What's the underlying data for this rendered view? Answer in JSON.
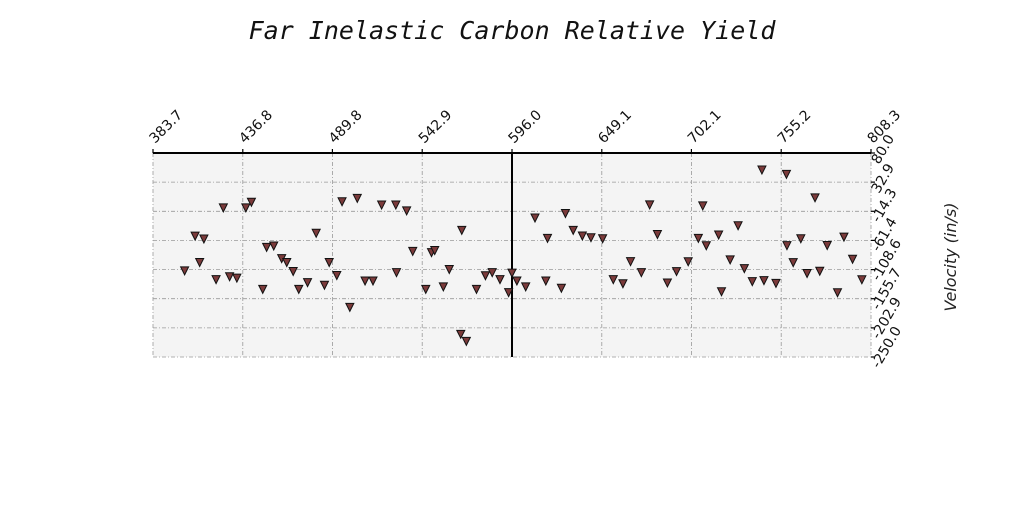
{
  "chart_data": {
    "type": "scatter",
    "title": "Far Inelastic Carbon Relative Yield",
    "xlabel": "",
    "ylabel": "Velocity (in/s)",
    "x_axis_position": "top",
    "y_axis_position": "right",
    "xlim": [
      383.7,
      808.3
    ],
    "ylim": [
      -250.0,
      80.0
    ],
    "x_ticks": [
      "383.7",
      "436.8",
      "489.8",
      "542.9",
      "596.0",
      "649.1",
      "702.1",
      "755.2",
      "808.3"
    ],
    "y_ticks": [
      "80.0",
      "32.9",
      "-14.3",
      "-61.4",
      "-108.6",
      "-155.7",
      "-202.9",
      "-250.0"
    ],
    "grid": true,
    "vertical_reference_line": 596.0,
    "marker": "triangle-down",
    "colors": {
      "marker_fill": "#7b3a3a",
      "marker_edge": "#111111",
      "background": "#f4f4f4",
      "grid": "#999999",
      "reference_line": "#000000"
    },
    "points": [
      [
        402.4,
        -110.7
      ],
      [
        408.6,
        -54.5
      ],
      [
        411.3,
        -97.1
      ],
      [
        413.8,
        -59.1
      ],
      [
        421.0,
        -124.8
      ],
      [
        425.3,
        -8.8
      ],
      [
        429.0,
        -120.2
      ],
      [
        433.3,
        -122.5
      ],
      [
        438.6,
        -8.8
      ],
      [
        441.9,
        0.3
      ],
      [
        448.6,
        -140.6
      ],
      [
        450.9,
        -72.7
      ],
      [
        455.1,
        -70.4
      ],
      [
        459.8,
        -90.8
      ],
      [
        462.8,
        -97.1
      ],
      [
        466.6,
        -111.7
      ],
      [
        469.9,
        -140.6
      ],
      [
        475.1,
        -129.7
      ],
      [
        480.2,
        -49.9
      ],
      [
        485.1,
        -133.9
      ],
      [
        487.9,
        -97.1
      ],
      [
        492.4,
        -118.2
      ],
      [
        495.5,
        1.1
      ],
      [
        500.1,
        -169.7
      ],
      [
        504.5,
        6.5
      ],
      [
        509.1,
        -127.0
      ],
      [
        513.8,
        -127.0
      ],
      [
        518.9,
        -4.2
      ],
      [
        527.3,
        -4.2
      ],
      [
        527.7,
        -113.6
      ],
      [
        533.7,
        -13.6
      ],
      [
        537.3,
        -79.2
      ],
      [
        545.0,
        -140.6
      ],
      [
        548.4,
        -81.2
      ],
      [
        550.3,
        -77.8
      ],
      [
        555.4,
        -136.5
      ],
      [
        558.9,
        -108.4
      ],
      [
        566.3,
        -45.2
      ],
      [
        565.7,
        -213.3
      ],
      [
        569.0,
        -224.7
      ],
      [
        575.0,
        -140.6
      ],
      [
        580.3,
        -118.6
      ],
      [
        584.3,
        -113.6
      ],
      [
        588.9,
        -124.8
      ],
      [
        594.0,
        -145.8
      ],
      [
        596.0,
        -114.3
      ],
      [
        598.9,
        -127.0
      ],
      [
        604.1,
        -136.5
      ],
      [
        609.6,
        -25.2
      ],
      [
        616.0,
        -127.0
      ],
      [
        617.0,
        -58.1
      ],
      [
        625.2,
        -138.7
      ],
      [
        632.2,
        -45.2
      ],
      [
        637.6,
        -54.3
      ],
      [
        642.7,
        -57.0
      ],
      [
        649.6,
        -58.7
      ],
      [
        655.9,
        -124.9
      ],
      [
        661.6,
        -131.5
      ],
      [
        666.1,
        -95.8
      ],
      [
        672.5,
        -113.6
      ],
      [
        677.4,
        -4.0
      ],
      [
        682.0,
        -51.8
      ],
      [
        687.9,
        -130.2
      ],
      [
        693.3,
        -111.8
      ],
      [
        700.2,
        -95.9
      ],
      [
        706.2,
        -58.1
      ],
      [
        710.9,
        -70.0
      ],
      [
        718.2,
        -52.6
      ],
      [
        719.9,
        -144.4
      ],
      [
        725.0,
        -92.9
      ],
      [
        729.7,
        -37.6
      ],
      [
        733.4,
        -107.0
      ],
      [
        738.1,
        -128.1
      ],
      [
        745.0,
        -126.5
      ],
      [
        752.1,
        -131.0
      ],
      [
        758.6,
        -69.9
      ],
      [
        762.3,
        -97.3
      ],
      [
        766.8,
        -58.7
      ],
      [
        770.5,
        -114.9
      ],
      [
        775.2,
        7.5
      ],
      [
        778.0,
        -111.3
      ],
      [
        782.4,
        -69.7
      ],
      [
        788.5,
        -146.0
      ],
      [
        792.3,
        -56.0
      ],
      [
        797.4,
        -91.8
      ],
      [
        802.9,
        -125.1
      ],
      [
        743.8,
        52.4
      ],
      [
        758.3,
        45.5
      ],
      [
        627.6,
        -17.9
      ],
      [
        708.8,
        -5.6
      ]
    ]
  }
}
